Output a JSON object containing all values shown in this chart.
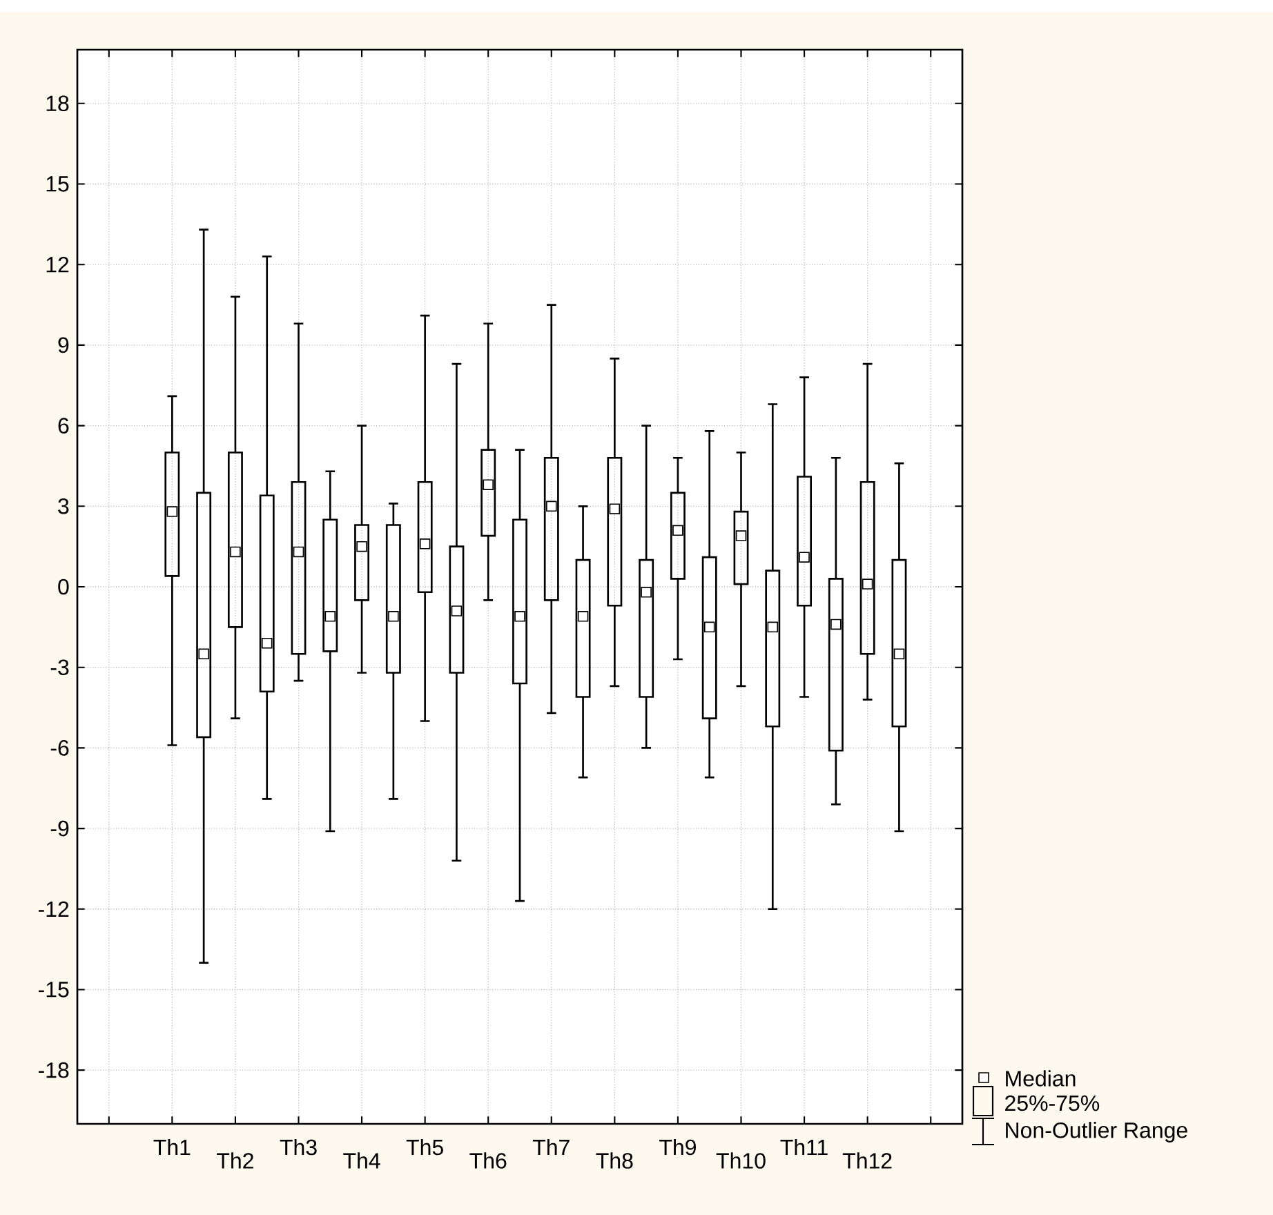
{
  "chart_data": {
    "type": "box",
    "categories": [
      "Th1",
      null,
      "Th2",
      null,
      "Th3",
      null,
      "Th4",
      null,
      "Th5",
      null,
      "Th6",
      null,
      "Th7",
      null,
      "Th8",
      null,
      "Th9",
      null,
      "Th10",
      null,
      "Th11",
      null,
      "Th12",
      null
    ],
    "boxes": [
      {
        "low": -5.9,
        "q1": 0.4,
        "median": 2.8,
        "q3": 5.0,
        "high": 7.1
      },
      {
        "low": -14.0,
        "q1": -5.6,
        "median": -2.5,
        "q3": 3.5,
        "high": 13.3
      },
      {
        "low": -4.9,
        "q1": -1.5,
        "median": 1.3,
        "q3": 5.0,
        "high": 10.8
      },
      {
        "low": -7.9,
        "q1": -3.9,
        "median": -2.1,
        "q3": 3.4,
        "high": 12.3
      },
      {
        "low": -3.5,
        "q1": -2.5,
        "median": 1.3,
        "q3": 3.9,
        "high": 9.8
      },
      {
        "low": -9.1,
        "q1": -2.4,
        "median": -1.1,
        "q3": 2.5,
        "high": 4.3
      },
      {
        "low": -3.2,
        "q1": -0.5,
        "median": 1.5,
        "q3": 2.3,
        "high": 6.0
      },
      {
        "low": -7.9,
        "q1": -3.2,
        "median": -1.1,
        "q3": 2.3,
        "high": 3.1
      },
      {
        "low": -5.0,
        "q1": -0.2,
        "median": 1.6,
        "q3": 3.9,
        "high": 10.1
      },
      {
        "low": -10.2,
        "q1": -3.2,
        "median": -0.9,
        "q3": 1.5,
        "high": 8.3
      },
      {
        "low": -0.5,
        "q1": 1.9,
        "median": 3.8,
        "q3": 5.1,
        "high": 9.8
      },
      {
        "low": -11.7,
        "q1": -3.6,
        "median": -1.1,
        "q3": 2.5,
        "high": 5.1
      },
      {
        "low": -4.7,
        "q1": -0.5,
        "median": 3.0,
        "q3": 4.8,
        "high": 10.5
      },
      {
        "low": -7.1,
        "q1": -4.1,
        "median": -1.1,
        "q3": 1.0,
        "high": 3.0
      },
      {
        "low": -3.7,
        "q1": -0.7,
        "median": 2.9,
        "q3": 4.8,
        "high": 8.5
      },
      {
        "low": -6.0,
        "q1": -4.1,
        "median": -0.2,
        "q3": 1.0,
        "high": 6.0
      },
      {
        "low": -2.7,
        "q1": 0.3,
        "median": 2.1,
        "q3": 3.5,
        "high": 4.8
      },
      {
        "low": -7.1,
        "q1": -4.9,
        "median": -1.5,
        "q3": 1.1,
        "high": 5.8
      },
      {
        "low": -3.7,
        "q1": 0.1,
        "median": 1.9,
        "q3": 2.8,
        "high": 5.0
      },
      {
        "low": -12.0,
        "q1": -5.2,
        "median": -1.5,
        "q3": 0.6,
        "high": 6.8
      },
      {
        "low": -4.1,
        "q1": -0.7,
        "median": 1.1,
        "q3": 4.1,
        "high": 7.8
      },
      {
        "low": -8.1,
        "q1": -6.1,
        "median": -1.4,
        "q3": 0.3,
        "high": 4.8
      },
      {
        "low": -4.2,
        "q1": -2.5,
        "median": 0.1,
        "q3": 3.9,
        "high": 8.3
      },
      {
        "low": -9.1,
        "q1": -5.2,
        "median": -2.5,
        "q3": 1.0,
        "high": 4.6
      }
    ],
    "ylim": [
      -20,
      20
    ],
    "yticks": [
      -18,
      -15,
      -12,
      -9,
      -6,
      -3,
      0,
      3,
      6,
      9,
      12,
      15,
      18
    ],
    "grid": true,
    "annotations": [
      "Median",
      "25%-75%",
      "Non-Outlier Range"
    ]
  }
}
